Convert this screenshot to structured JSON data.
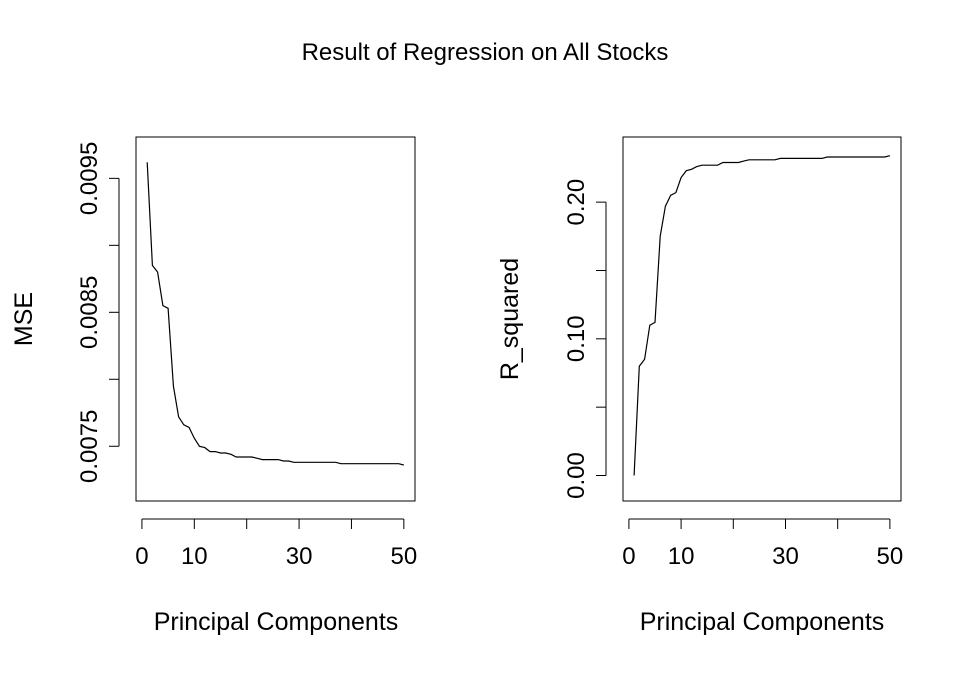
{
  "figure": {
    "title": "Result of Regression on All Stocks"
  },
  "chart_data": [
    {
      "type": "line",
      "xlabel": "Principal Components",
      "ylabel": "MSE",
      "xlim": [
        1,
        50
      ],
      "ylim": [
        0.0072,
        0.0097
      ],
      "x_ticks": [
        0,
        10,
        20,
        30,
        40,
        50
      ],
      "x_tick_labels": [
        "0",
        "10",
        "",
        "30",
        "",
        "50"
      ],
      "y_ticks": [
        0.0075,
        0.008,
        0.0085,
        0.009,
        0.0095
      ],
      "y_tick_labels": [
        "0.0075",
        "",
        "0.0085",
        "",
        "0.0095"
      ],
      "grid": false,
      "series": [
        {
          "x": [
            1,
            2,
            3,
            4,
            5,
            6,
            7,
            8,
            9,
            10,
            11,
            12,
            13,
            14,
            15,
            16,
            17,
            18,
            19,
            20,
            21,
            22,
            23,
            24,
            25,
            26,
            27,
            28,
            29,
            30,
            31,
            32,
            33,
            34,
            35,
            36,
            37,
            38,
            39,
            40,
            41,
            42,
            43,
            44,
            45,
            46,
            47,
            48,
            49,
            50
          ],
          "values": [
            0.00962,
            0.00885,
            0.0088,
            0.00855,
            0.00853,
            0.00795,
            0.00772,
            0.00766,
            0.00764,
            0.00756,
            0.0075,
            0.00749,
            0.00746,
            0.00746,
            0.00745,
            0.00745,
            0.00744,
            0.00742,
            0.00742,
            0.00742,
            0.00742,
            0.00741,
            0.0074,
            0.0074,
            0.0074,
            0.0074,
            0.00739,
            0.00739,
            0.00738,
            0.00738,
            0.00738,
            0.00738,
            0.00738,
            0.00738,
            0.00738,
            0.00738,
            0.00738,
            0.00737,
            0.00737,
            0.00737,
            0.00737,
            0.00737,
            0.00737,
            0.00737,
            0.00737,
            0.00737,
            0.00737,
            0.00737,
            0.00737,
            0.00736
          ]
        }
      ]
    },
    {
      "type": "line",
      "xlabel": "Principal Components",
      "ylabel": "R_squared",
      "xlim": [
        1,
        50
      ],
      "ylim": [
        -0.008,
        0.237
      ],
      "x_ticks": [
        0,
        10,
        20,
        30,
        40,
        50
      ],
      "x_tick_labels": [
        "0",
        "10",
        "",
        "30",
        "",
        "50"
      ],
      "y_ticks": [
        0.0,
        0.05,
        0.1,
        0.15,
        0.2
      ],
      "y_tick_labels": [
        "0.00",
        "",
        "0.10",
        "",
        "0.20"
      ],
      "grid": false,
      "series": [
        {
          "x": [
            1,
            2,
            3,
            4,
            5,
            6,
            7,
            8,
            9,
            10,
            11,
            12,
            13,
            14,
            15,
            16,
            17,
            18,
            19,
            20,
            21,
            22,
            23,
            24,
            25,
            26,
            27,
            28,
            29,
            30,
            31,
            32,
            33,
            34,
            35,
            36,
            37,
            38,
            39,
            40,
            41,
            42,
            43,
            44,
            45,
            46,
            47,
            48,
            49,
            50
          ],
          "values": [
            0.0,
            0.08,
            0.085,
            0.11,
            0.112,
            0.175,
            0.197,
            0.205,
            0.207,
            0.218,
            0.223,
            0.224,
            0.226,
            0.227,
            0.227,
            0.227,
            0.227,
            0.229,
            0.229,
            0.229,
            0.229,
            0.23,
            0.231,
            0.231,
            0.231,
            0.231,
            0.231,
            0.231,
            0.232,
            0.232,
            0.232,
            0.232,
            0.232,
            0.232,
            0.232,
            0.232,
            0.232,
            0.233,
            0.233,
            0.233,
            0.233,
            0.233,
            0.233,
            0.233,
            0.233,
            0.233,
            0.233,
            0.233,
            0.233,
            0.234
          ]
        }
      ]
    }
  ]
}
